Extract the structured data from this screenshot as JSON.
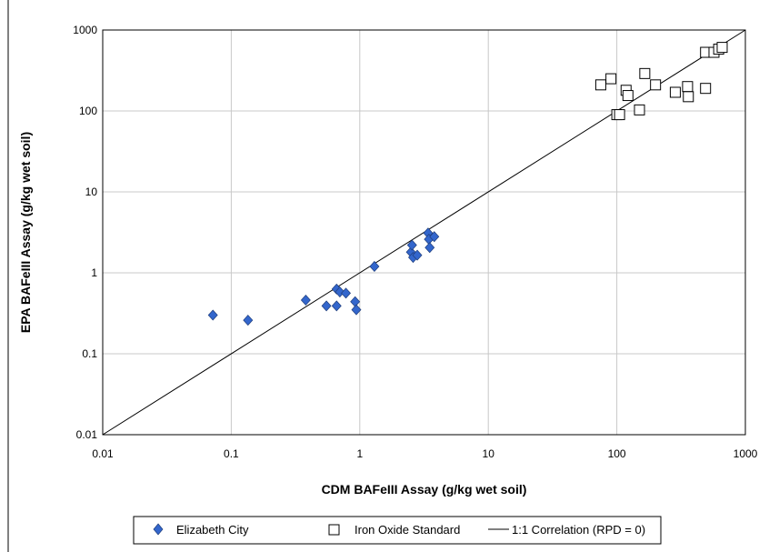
{
  "chart_data": {
    "type": "scatter",
    "title": "",
    "xlabel": "CDM BAFeIII Assay (g/kg wet soil)",
    "ylabel": "EPA BAFeIII Assay (g/kg wet soil)",
    "x_scale": "log",
    "y_scale": "log",
    "xlim": [
      0.01,
      1000
    ],
    "ylim": [
      0.01,
      1000
    ],
    "x_ticks": [
      "0.01",
      "0.1",
      "1",
      "10",
      "100",
      "1000"
    ],
    "y_ticks": [
      "0.01",
      "0.1",
      "1",
      "10",
      "100",
      "1000"
    ],
    "grid": true,
    "legend_position": "bottom",
    "series": [
      {
        "name": "Elizabeth City",
        "marker": "diamond",
        "color": "#3366cc",
        "points": [
          [
            0.072,
            0.3
          ],
          [
            0.135,
            0.26
          ],
          [
            0.38,
            0.46
          ],
          [
            0.55,
            0.39
          ],
          [
            0.66,
            0.39
          ],
          [
            0.66,
            0.63
          ],
          [
            0.7,
            0.58
          ],
          [
            0.78,
            0.56
          ],
          [
            0.92,
            0.44
          ],
          [
            0.94,
            0.35
          ],
          [
            1.3,
            1.2
          ],
          [
            2.5,
            1.8
          ],
          [
            2.55,
            2.2
          ],
          [
            2.6,
            1.55
          ],
          [
            2.8,
            1.65
          ],
          [
            3.4,
            3.1
          ],
          [
            3.45,
            2.6
          ],
          [
            3.5,
            2.05
          ],
          [
            3.8,
            2.8
          ]
        ]
      },
      {
        "name": "Iron Oxide Standard",
        "marker": "square",
        "color": "#ffffff",
        "points": [
          [
            75,
            210
          ],
          [
            90,
            250
          ],
          [
            100,
            90
          ],
          [
            105,
            90
          ],
          [
            118,
            180
          ],
          [
            122,
            155
          ],
          [
            150,
            103
          ],
          [
            165,
            290
          ],
          [
            200,
            210
          ],
          [
            285,
            170
          ],
          [
            355,
            200
          ],
          [
            360,
            150
          ],
          [
            490,
            190
          ],
          [
            490,
            530
          ],
          [
            570,
            530
          ],
          [
            620,
            580
          ],
          [
            660,
            610
          ]
        ]
      },
      {
        "name": "1:1 Correlation (RPD = 0)",
        "line": "solid",
        "color": "#000000",
        "points": [
          [
            0.01,
            0.01
          ],
          [
            1000,
            1000
          ]
        ]
      }
    ]
  }
}
